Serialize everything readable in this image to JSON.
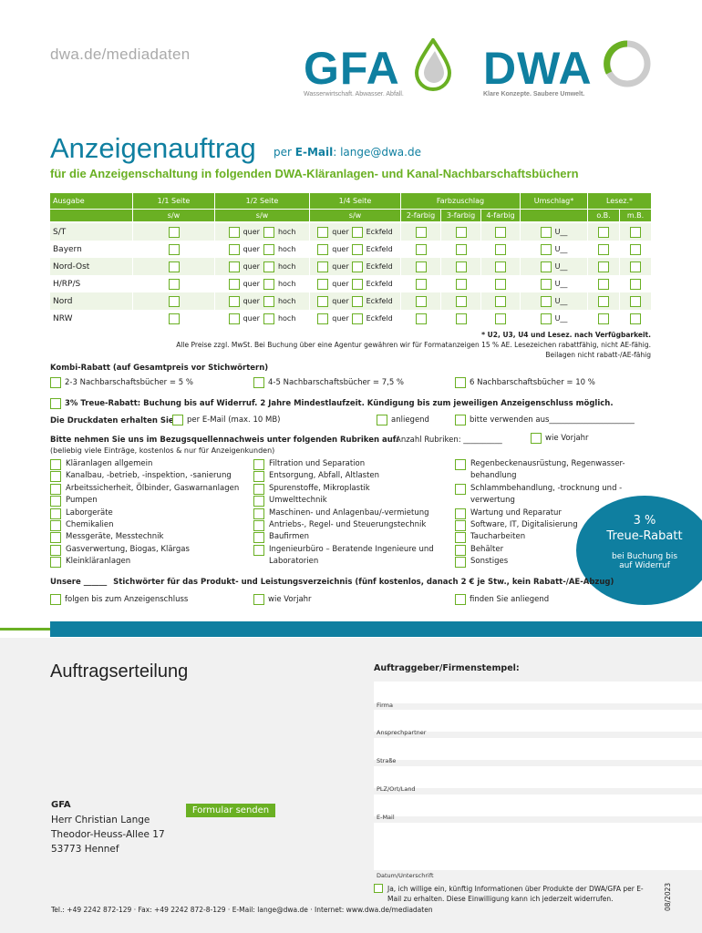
{
  "header": {
    "url": "dwa.de/mediadaten",
    "gfa_logo": {
      "text": "GFA",
      "tagline": "Wasserwirtschaft. Abwasser. Abfall."
    },
    "dwa_logo": {
      "text": "DWA",
      "tagline": "Klare Konzepte. Saubere Umwelt."
    }
  },
  "title": "Anzeigenauftrag",
  "title_suffix_prefix": "per",
  "title_suffix_bold": "E-Mail",
  "title_suffix_email": ": lange@dwa.de",
  "subtitle": "für die Anzeigenschaltung in folgenden DWA-Kläranlagen- und Kanal-Nachbarschaftsbüchern",
  "table": {
    "headers": {
      "ausgabe": "Ausgabe",
      "seite1": "1/1 Seite",
      "seite2": "1/2 Seite",
      "seite4": "1/4 Seite",
      "farbzuschlag": "Farbzuschlag",
      "umschlag": "Umschlag*",
      "lesez": "Lesez.*",
      "sw": "s/w",
      "farbig2": "2-farbig",
      "farbig3": "3-farbig",
      "farbig4": "4-farbig",
      "ob": "o.B.",
      "mb": "m.B."
    },
    "opt_quer": "quer",
    "opt_hoch": "hoch",
    "opt_eckfeld": "Eckfeld",
    "opt_u": "U__",
    "rows": [
      "S/T",
      "Bayern",
      "Nord-Ost",
      "H/RP/S",
      "Nord",
      "NRW"
    ]
  },
  "notes": {
    "line1": "* U2, U3, U4 und Lesez. nach Verfügbarkeit.",
    "line2": "Alle Preise zzgl. MwSt. Bei Buchung über eine Agentur gewähren wir für Formatanzeigen 15 % AE. Lesezeichen rabattfähig, nicht AE-fähig.",
    "line3": "Beilagen nicht rabatt-/AE-fähig"
  },
  "kombi": {
    "label": "Kombi-Rabatt (auf Gesamtpreis vor Stichwörtern)",
    "opt1": "2-3 Nachbarschaftsbücher = 5 %",
    "opt2": "4-5 Nachbarschaftsbücher = 7,5 %",
    "opt3": "6 Nachbarschaftsbücher = 10 %"
  },
  "treue": "3% Treue-Rabatt: Buchung bis auf Widerruf. 2 Jahre Mindestlaufzeit. Kündigung bis zum jeweiligen Anzeigenschluss möglich.",
  "druckdaten": {
    "label": "Die Druckdaten erhalten Sie",
    "opt1": "per E-Mail (max. 10 MB)",
    "opt2": "anliegend",
    "opt3": "bitte verwenden aus______________________"
  },
  "bezugsquellen": {
    "label": "Bitte nehmen Sie uns im Bezugsquellennachweis unter folgenden Rubriken auf:",
    "anzahl": "Anzahl Rubriken: __________",
    "vorjahr": "wie Vorjahr",
    "hint": "(beliebig viele Einträge, kostenlos & nur für Anzeigenkunden)",
    "col1": [
      "Kläranlagen allgemein",
      "Kanalbau, -betrieb, -inspektion, -sanierung",
      "Arbeitssicherheit, Ölbinder, Gaswarnanlagen",
      "Pumpen",
      "Laborgeräte",
      "Chemikalien",
      "Messgeräte, Messtechnik",
      "Gasverwertung, Biogas, Klärgas",
      "Kleinkläranlagen"
    ],
    "col2": [
      "Filtration und Separation",
      "Entsorgung, Abfall, Altlasten",
      "Spurenstoffe, Mikroplastik",
      "Umwelttechnik",
      "Maschinen- und Anlagenbau/-vermietung",
      "Antriebs-, Regel- und Steuerungstechnik",
      "Baufirmen",
      "Ingenieurbüro – Beratende Ingenieure und Laboratorien"
    ],
    "col3": [
      "Regenbeckenausrüstung, Regenwasser-behandlung",
      "Schlammbehandlung, -trocknung und -verwertung",
      "Wartung und Reparatur",
      "Software, IT, Digitalisierung",
      "Taucharbeiten",
      "Behälter",
      "Sonstiges"
    ]
  },
  "bubble": {
    "percent": "3 %",
    "label": "Treue-Rabatt",
    "line1": "bei Buchung bis",
    "line2": "auf Widerruf"
  },
  "stichwoerter": {
    "text_prefix": "Unsere ______",
    "text": "Stichwörter für das Produkt- und Leistungsverzeichnis (fünf kostenlos, danach 2 € je Stw., kein Rabatt-/AE-Abzug)",
    "opt1": "folgen bis zum Anzeigenschluss",
    "opt2": "wie Vorjahr",
    "opt3": "finden Sie anliegend"
  },
  "auftrag": {
    "heading": "Auftragserteilung",
    "stempel": "Auftraggeber/Firmenstempel:",
    "fields": [
      "Firma",
      "Ansprechpartner",
      "Straße",
      "PLZ/Ort/Land",
      "E-Mail",
      "Datum/Unterschrift"
    ],
    "consent": "Ja, ich willige ein, künftig Informationen über Produkte der DWA/GFA per E-Mail zu erhalten. Diese Einwilligung kann ich jederzeit widerrufen.",
    "contact": {
      "org": "GFA",
      "name": "Herr Christian Lange",
      "street": "Theodor-Heuss-Allee 17",
      "city": "53773 Hennef"
    },
    "button": "Formular senden",
    "footer": "Tel.: +49 2242 872-129 · Fax: +49 2242 872-8-129 · E-Mail: lange@dwa.de · Internet: www.dwa.de/mediadaten",
    "date_code": "08/2023"
  },
  "colors": {
    "green": "#6ab023",
    "teal": "#0f7fa0"
  }
}
